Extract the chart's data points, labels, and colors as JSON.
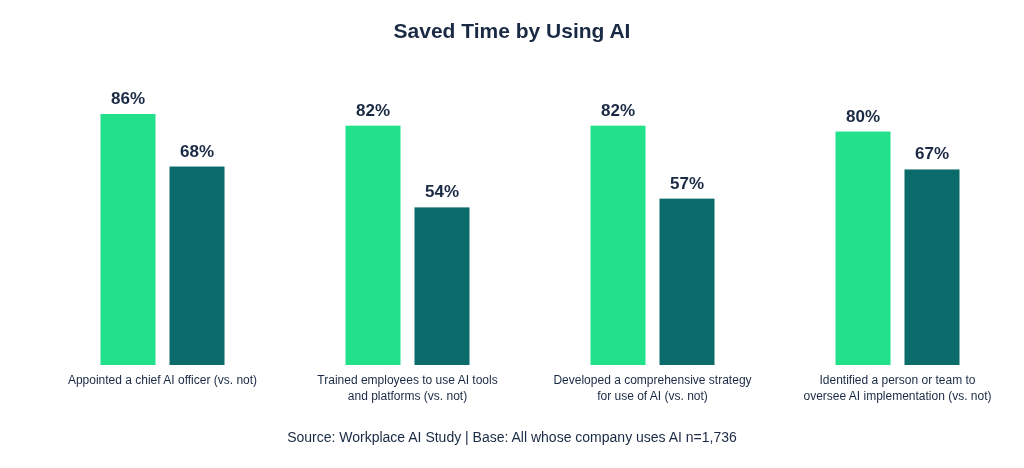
{
  "chart_data": {
    "type": "bar",
    "title": "Saved Time by Using AI",
    "categories": [
      "Appointed a chief AI officer (vs. not)",
      "Trained employees to use AI tools and platforms (vs. not)",
      "Developed a comprehensive strategy for use of AI (vs. not)",
      "Identified a person or team to oversee AI implementation (vs. not)"
    ],
    "series": [
      {
        "color": "#21e28a",
        "values": [
          86,
          82,
          82,
          80
        ],
        "value_labels": [
          "86%",
          "82%",
          "82%",
          "80%"
        ]
      },
      {
        "color": "#0b6b6b",
        "values": [
          68,
          54,
          57,
          67
        ],
        "value_labels": [
          "68%",
          "54%",
          "57%",
          "67%"
        ]
      }
    ],
    "tick_labels": "x",
    "annotations": [
      "Source: Workplace AI Study | Base: All whose company uses AI n=1,736"
    ]
  }
}
